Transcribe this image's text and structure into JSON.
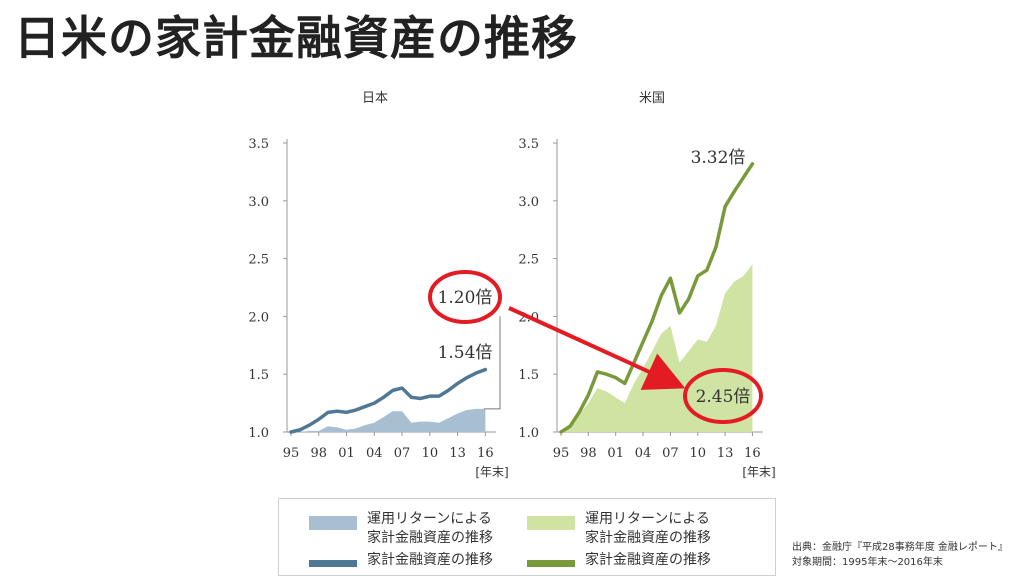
{
  "title": "日米の家計金融資産の推移",
  "colors": {
    "jp_area": "#a7bfd0",
    "jp_line": "#4f7896",
    "us_area": "#cfe3a2",
    "us_line": "#789a3a",
    "highlight": "#e31b23",
    "axis": "#999999",
    "text": "#333333"
  },
  "chart_data": [
    {
      "type": "area",
      "title": "日本",
      "x_ticks": [
        "95",
        "98",
        "01",
        "04",
        "07",
        "10",
        "13",
        "16"
      ],
      "x_unit": "[年末]",
      "y_ticks": [
        "1.0",
        "1.5",
        "2.0",
        "2.5",
        "3.0",
        "3.5"
      ],
      "ylim": [
        1.0,
        3.5
      ],
      "xlim": [
        1995,
        2016.5
      ],
      "x": [
        1995,
        1996,
        1997,
        1998,
        1999,
        2000,
        2001,
        2002,
        2003,
        2004,
        2005,
        2006,
        2007,
        2008,
        2009,
        2010,
        2011,
        2012,
        2013,
        2014,
        2015,
        2016
      ],
      "series": [
        {
          "name": "運用リターンによる家計金融資産の推移",
          "kind": "area",
          "values": [
            1.0,
            1.0,
            1.01,
            1.01,
            1.05,
            1.04,
            1.02,
            1.03,
            1.06,
            1.08,
            1.13,
            1.18,
            1.18,
            1.08,
            1.09,
            1.09,
            1.08,
            1.12,
            1.16,
            1.19,
            1.2,
            1.2
          ]
        },
        {
          "name": "家計金融資産の推移",
          "kind": "line",
          "values": [
            1.0,
            1.02,
            1.06,
            1.11,
            1.17,
            1.18,
            1.17,
            1.19,
            1.22,
            1.25,
            1.3,
            1.36,
            1.38,
            1.3,
            1.29,
            1.31,
            1.31,
            1.36,
            1.42,
            1.47,
            1.51,
            1.54
          ]
        }
      ],
      "annotations": [
        {
          "text": "1.20倍",
          "highlighted": true
        },
        {
          "text": "1.54倍",
          "highlighted": false
        }
      ]
    },
    {
      "type": "area",
      "title": "米国",
      "x_ticks": [
        "95",
        "98",
        "01",
        "04",
        "07",
        "10",
        "13",
        "16"
      ],
      "x_unit": "[年末]",
      "y_ticks": [
        "1.0",
        "1.5",
        "2.0",
        "2.5",
        "3.0",
        "3.5"
      ],
      "ylim": [
        1.0,
        3.5
      ],
      "xlim": [
        1995,
        2016.5
      ],
      "x": [
        1995,
        1996,
        1997,
        1998,
        1999,
        2000,
        2001,
        2002,
        2003,
        2004,
        2005,
        2006,
        2007,
        2008,
        2009,
        2010,
        2011,
        2012,
        2013,
        2014,
        2015,
        2016
      ],
      "series": [
        {
          "name": "運用リターンによる家計金融資産の推移",
          "kind": "area",
          "values": [
            1.0,
            1.05,
            1.15,
            1.25,
            1.38,
            1.35,
            1.3,
            1.25,
            1.42,
            1.55,
            1.7,
            1.85,
            1.92,
            1.6,
            1.7,
            1.8,
            1.78,
            1.92,
            2.2,
            2.3,
            2.35,
            2.45
          ]
        },
        {
          "name": "家計金融資産の推移",
          "kind": "line",
          "values": [
            1.0,
            1.05,
            1.17,
            1.32,
            1.52,
            1.5,
            1.47,
            1.42,
            1.6,
            1.78,
            1.96,
            2.18,
            2.33,
            2.03,
            2.15,
            2.35,
            2.4,
            2.6,
            2.95,
            3.08,
            3.2,
            3.32
          ]
        }
      ],
      "annotations": [
        {
          "text": "3.32倍",
          "highlighted": false
        },
        {
          "text": "2.45倍",
          "highlighted": true
        }
      ]
    }
  ],
  "legend": {
    "items": [
      {
        "line1": "運用リターンによる",
        "line2": "家計金融資産の推移"
      },
      {
        "line1": "運用リターンによる",
        "line2": "家計金融資産の推移"
      },
      {
        "line1": "家計金融資産の推移"
      },
      {
        "line1": "家計金融資産の推移"
      }
    ]
  },
  "source": {
    "line1": "出典：金融庁『平成28事務年度 金融レポート』",
    "line2": "対象期間：1995年末～2016年末"
  }
}
